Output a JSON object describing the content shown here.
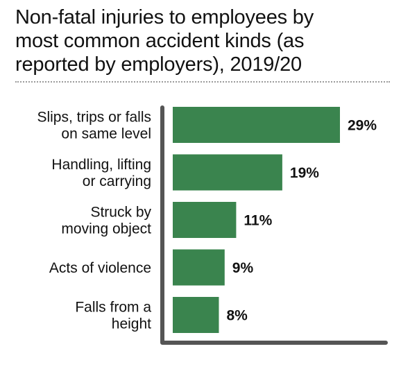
{
  "title_lines": [
    "Non-fatal injuries to employees by",
    "most common accident kinds (as",
    "reported by employers), 2019/20"
  ],
  "colors": {
    "bar": "#3a844e",
    "axis": "#555555",
    "text": "#111111"
  },
  "chart_data": {
    "type": "bar",
    "orientation": "horizontal",
    "title": "Non-fatal injuries to employees by most common accident kinds (as reported by employers), 2019/20",
    "categories": [
      [
        "Slips, trips or falls",
        "on same level"
      ],
      [
        "Handling, lifting",
        "or carrying"
      ],
      [
        "Struck by",
        "moving object"
      ],
      [
        "Acts of violence"
      ],
      [
        "Falls from a",
        "height"
      ]
    ],
    "values": [
      29,
      19,
      11,
      9,
      8
    ],
    "value_labels": [
      "29%",
      "19%",
      "11%",
      "9%",
      "8%"
    ],
    "unit": "%",
    "xlim": [
      0,
      30
    ],
    "grid": false,
    "legend": "none"
  }
}
